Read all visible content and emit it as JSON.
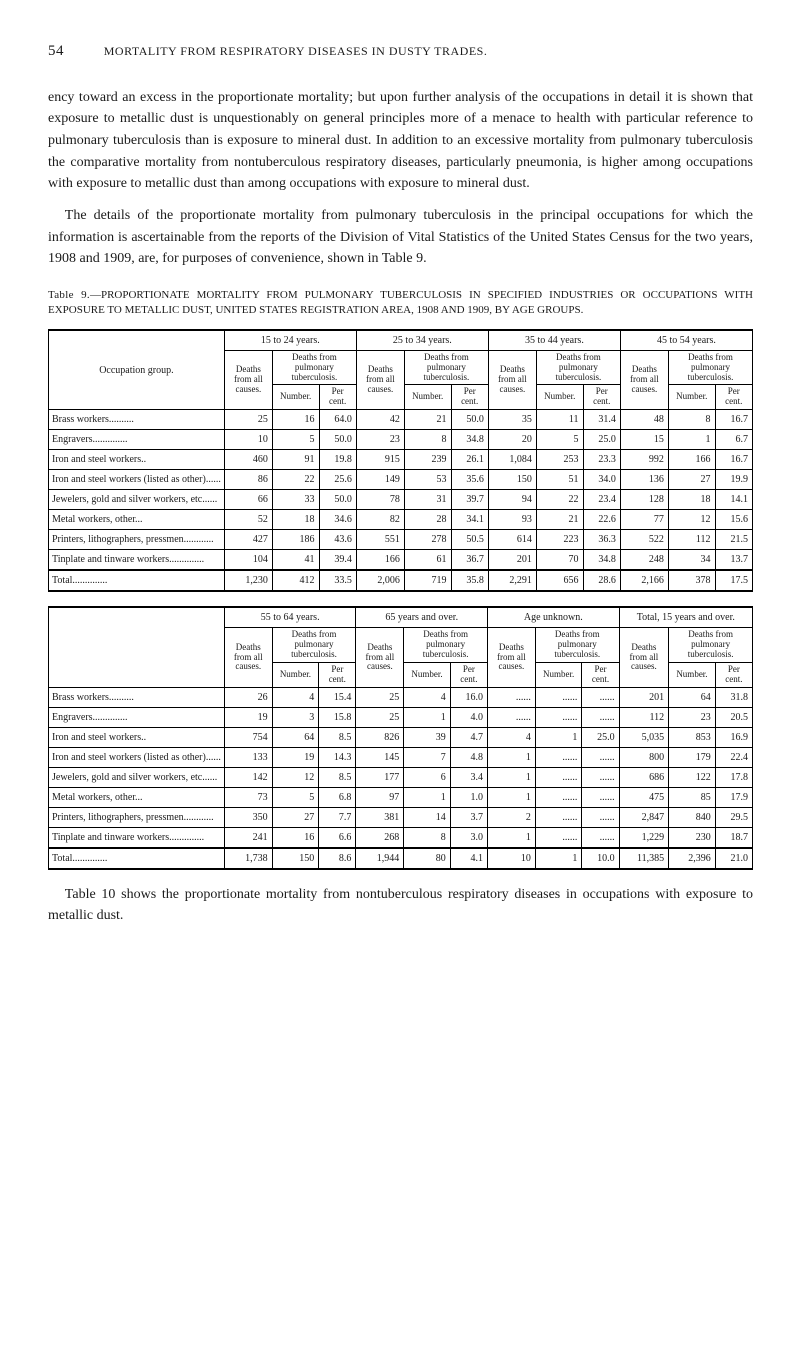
{
  "header": {
    "page_number": "54",
    "running_title": "MORTALITY FROM RESPIRATORY DISEASES IN DUSTY TRADES."
  },
  "paragraphs": {
    "p1": "ency toward an excess in the proportionate mortality; but upon further analysis of the occupations in detail it is shown that exposure to metallic dust is unquestionably on general principles more of a menace to health with particular reference to pulmonary tuberculosis than is exposure to mineral dust. In addition to an excessive mortality from pulmonary tuberculosis the comparative mortality from nontuberculous respiratory diseases, particularly pneumonia, is higher among occupations with exposure to metallic dust than among occupations with exposure to mineral dust.",
    "p2": "The details of the proportionate mortality from pulmonary tuberculosis in the principal occupations for which the information is ascertainable from the reports of the Division of Vital Statistics of the United States Census for the two years, 1908 and 1909, are, for purposes of convenience, shown in Table 9.",
    "p3": "Table 10 shows the proportionate mortality from nontuberculous respiratory diseases in occupations with exposure to metallic dust."
  },
  "table_caption": {
    "lead": "Table 9.",
    "rest": "—PROPORTIONATE MORTALITY FROM PULMONARY TUBERCULOSIS IN SPECIFIED INDUSTRIES OR OCCUPATIONS WITH EXPOSURE TO METALLIC DUST, UNITED STATES REGISTRATION AREA, 1908 AND 1909, BY AGE GROUPS."
  },
  "table1": {
    "col_headers": {
      "occupation": "Occupation group.",
      "groups": [
        "15 to 24 years.",
        "25 to 34 years.",
        "35 to 44 years.",
        "45 to 54 years."
      ],
      "deaths_all": "Deaths from all causes.",
      "deaths_pt": "Deaths from pulmonary tuberculosis.",
      "number": "Number.",
      "percent": "Per cent."
    },
    "rows": [
      {
        "occ": "Brass workers..........",
        "d": [
          [
            "25",
            "16",
            "64.0"
          ],
          [
            "42",
            "21",
            "50.0"
          ],
          [
            "35",
            "11",
            "31.4"
          ],
          [
            "48",
            "8",
            "16.7"
          ]
        ]
      },
      {
        "occ": "Engravers..............",
        "d": [
          [
            "10",
            "5",
            "50.0"
          ],
          [
            "23",
            "8",
            "34.8"
          ],
          [
            "20",
            "5",
            "25.0"
          ],
          [
            "15",
            "1",
            "6.7"
          ]
        ]
      },
      {
        "occ": "Iron and steel workers..",
        "d": [
          [
            "460",
            "91",
            "19.8"
          ],
          [
            "915",
            "239",
            "26.1"
          ],
          [
            "1,084",
            "253",
            "23.3"
          ],
          [
            "992",
            "166",
            "16.7"
          ]
        ]
      },
      {
        "occ": "Iron and steel workers (listed as other)......",
        "d": [
          [
            "86",
            "22",
            "25.6"
          ],
          [
            "149",
            "53",
            "35.6"
          ],
          [
            "150",
            "51",
            "34.0"
          ],
          [
            "136",
            "27",
            "19.9"
          ]
        ]
      },
      {
        "occ": "Jewelers, gold and silver workers, etc......",
        "d": [
          [
            "66",
            "33",
            "50.0"
          ],
          [
            "78",
            "31",
            "39.7"
          ],
          [
            "94",
            "22",
            "23.4"
          ],
          [
            "128",
            "18",
            "14.1"
          ]
        ]
      },
      {
        "occ": "Metal workers, other...",
        "d": [
          [
            "52",
            "18",
            "34.6"
          ],
          [
            "82",
            "28",
            "34.1"
          ],
          [
            "93",
            "21",
            "22.6"
          ],
          [
            "77",
            "12",
            "15.6"
          ]
        ]
      },
      {
        "occ": "Printers, lithographers, pressmen............",
        "d": [
          [
            "427",
            "186",
            "43.6"
          ],
          [
            "551",
            "278",
            "50.5"
          ],
          [
            "614",
            "223",
            "36.3"
          ],
          [
            "522",
            "112",
            "21.5"
          ]
        ]
      },
      {
        "occ": "Tinplate and tinware workers..............",
        "d": [
          [
            "104",
            "41",
            "39.4"
          ],
          [
            "166",
            "61",
            "36.7"
          ],
          [
            "201",
            "70",
            "34.8"
          ],
          [
            "248",
            "34",
            "13.7"
          ]
        ]
      }
    ],
    "total": {
      "occ": "Total..............",
      "d": [
        [
          "1,230",
          "412",
          "33.5"
        ],
        [
          "2,006",
          "719",
          "35.8"
        ],
        [
          "2,291",
          "656",
          "28.6"
        ],
        [
          "2,166",
          "378",
          "17.5"
        ]
      ]
    }
  },
  "table2": {
    "col_headers": {
      "groups": [
        "55 to 64 years.",
        "65 years and over.",
        "Age unknown.",
        "Total, 15 years and over."
      ]
    },
    "rows": [
      {
        "occ": "Brass workers..........",
        "d": [
          [
            "26",
            "4",
            "15.4"
          ],
          [
            "25",
            "4",
            "16.0"
          ],
          [
            "......",
            "......",
            "......"
          ],
          [
            "201",
            "64",
            "31.8"
          ]
        ]
      },
      {
        "occ": "Engravers..............",
        "d": [
          [
            "19",
            "3",
            "15.8"
          ],
          [
            "25",
            "1",
            "4.0"
          ],
          [
            "......",
            "......",
            "......"
          ],
          [
            "112",
            "23",
            "20.5"
          ]
        ]
      },
      {
        "occ": "Iron and steel workers..",
        "d": [
          [
            "754",
            "64",
            "8.5"
          ],
          [
            "826",
            "39",
            "4.7"
          ],
          [
            "4",
            "1",
            "25.0"
          ],
          [
            "5,035",
            "853",
            "16.9"
          ]
        ]
      },
      {
        "occ": "Iron and steel workers (listed as other)......",
        "d": [
          [
            "133",
            "19",
            "14.3"
          ],
          [
            "145",
            "7",
            "4.8"
          ],
          [
            "1",
            "......",
            "......"
          ],
          [
            "800",
            "179",
            "22.4"
          ]
        ]
      },
      {
        "occ": "Jewelers, gold and silver workers, etc......",
        "d": [
          [
            "142",
            "12",
            "8.5"
          ],
          [
            "177",
            "6",
            "3.4"
          ],
          [
            "1",
            "......",
            "......"
          ],
          [
            "686",
            "122",
            "17.8"
          ]
        ]
      },
      {
        "occ": "Metal workers, other...",
        "d": [
          [
            "73",
            "5",
            "6.8"
          ],
          [
            "97",
            "1",
            "1.0"
          ],
          [
            "1",
            "......",
            "......"
          ],
          [
            "475",
            "85",
            "17.9"
          ]
        ]
      },
      {
        "occ": "Printers, lithographers, pressmen............",
        "d": [
          [
            "350",
            "27",
            "7.7"
          ],
          [
            "381",
            "14",
            "3.7"
          ],
          [
            "2",
            "......",
            "......"
          ],
          [
            "2,847",
            "840",
            "29.5"
          ]
        ]
      },
      {
        "occ": "Tinplate and tinware workers..............",
        "d": [
          [
            "241",
            "16",
            "6.6"
          ],
          [
            "268",
            "8",
            "3.0"
          ],
          [
            "1",
            "......",
            "......"
          ],
          [
            "1,229",
            "230",
            "18.7"
          ]
        ]
      }
    ],
    "total": {
      "occ": "Total..............",
      "d": [
        [
          "1,738",
          "150",
          "8.6"
        ],
        [
          "1,944",
          "80",
          "4.1"
        ],
        [
          "10",
          "1",
          "10.0"
        ],
        [
          "11,385",
          "2,396",
          "21.0"
        ]
      ]
    }
  }
}
